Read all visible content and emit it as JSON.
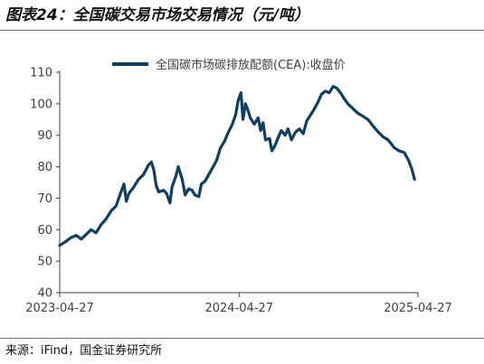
{
  "header": {
    "title": "图表24：全国碳交易市场交易情况（元/吨）"
  },
  "footer": {
    "source": "来源：iFind，国金证券研究所"
  },
  "chart_data": {
    "type": "line",
    "title": "图表24：全国碳交易市场交易情况（元/吨）",
    "xlabel": "",
    "ylabel": "",
    "ylim": [
      40,
      110
    ],
    "yticks": [
      40,
      50,
      60,
      70,
      80,
      90,
      100,
      110
    ],
    "xticks": [
      "2023-04-27",
      "2024-04-27",
      "2025-04-27"
    ],
    "legend_position": "top",
    "grid": false,
    "series": [
      {
        "name": "全国碳市场碳排放配额(CEA):收盘价",
        "color": "#0d3f63",
        "points": [
          [
            "2023-04-27",
            55.0
          ],
          [
            "2023-05-10",
            56.3
          ],
          [
            "2023-05-20",
            57.5
          ],
          [
            "2023-05-31",
            58.2
          ],
          [
            "2023-06-10",
            57.0
          ],
          [
            "2023-06-20",
            58.5
          ],
          [
            "2023-06-30",
            60.0
          ],
          [
            "2023-07-10",
            59.0
          ],
          [
            "2023-07-20",
            61.5
          ],
          [
            "2023-07-31",
            63.5
          ],
          [
            "2023-08-10",
            66.0
          ],
          [
            "2023-08-20",
            67.5
          ],
          [
            "2023-08-28",
            71.0
          ],
          [
            "2023-09-05",
            74.5
          ],
          [
            "2023-09-10",
            69.0
          ],
          [
            "2023-09-15",
            71.5
          ],
          [
            "2023-09-25",
            73.5
          ],
          [
            "2023-10-05",
            76.0
          ],
          [
            "2023-10-15",
            77.5
          ],
          [
            "2023-10-25",
            80.5
          ],
          [
            "2023-10-31",
            81.5
          ],
          [
            "2023-11-05",
            79.0
          ],
          [
            "2023-11-10",
            74.0
          ],
          [
            "2023-11-15",
            72.0
          ],
          [
            "2023-11-25",
            72.5
          ],
          [
            "2023-12-01",
            71.5
          ],
          [
            "2023-12-08",
            68.5
          ],
          [
            "2023-12-12",
            73.5
          ],
          [
            "2023-12-20",
            77.0
          ],
          [
            "2023-12-25",
            80.0
          ],
          [
            "2024-01-02",
            76.0
          ],
          [
            "2024-01-08",
            71.0
          ],
          [
            "2024-01-15",
            73.0
          ],
          [
            "2024-01-22",
            72.5
          ],
          [
            "2024-01-28",
            71.0
          ],
          [
            "2024-02-05",
            70.5
          ],
          [
            "2024-02-10",
            74.5
          ],
          [
            "2024-02-18",
            75.5
          ],
          [
            "2024-02-25",
            77.5
          ],
          [
            "2024-03-05",
            80.0
          ],
          [
            "2024-03-12",
            82.0
          ],
          [
            "2024-03-20",
            86.0
          ],
          [
            "2024-03-28",
            88.0
          ],
          [
            "2024-04-05",
            91.0
          ],
          [
            "2024-04-12",
            93.0
          ],
          [
            "2024-04-20",
            96.5
          ],
          [
            "2024-04-25",
            101.0
          ],
          [
            "2024-05-01",
            103.5
          ],
          [
            "2024-05-05",
            95.0
          ],
          [
            "2024-05-10",
            100.0
          ],
          [
            "2024-05-15",
            98.0
          ],
          [
            "2024-05-20",
            95.5
          ],
          [
            "2024-05-28",
            93.5
          ],
          [
            "2024-06-05",
            95.5
          ],
          [
            "2024-06-10",
            91.5
          ],
          [
            "2024-06-15",
            94.0
          ],
          [
            "2024-06-20",
            88.5
          ],
          [
            "2024-06-28",
            89.0
          ],
          [
            "2024-07-03",
            85.0
          ],
          [
            "2024-07-10",
            87.0
          ],
          [
            "2024-07-15",
            89.0
          ],
          [
            "2024-07-22",
            91.5
          ],
          [
            "2024-07-30",
            90.0
          ],
          [
            "2024-08-05",
            92.0
          ],
          [
            "2024-08-12",
            88.5
          ],
          [
            "2024-08-20",
            91.0
          ],
          [
            "2024-08-28",
            92.0
          ],
          [
            "2024-09-05",
            90.5
          ],
          [
            "2024-09-12",
            94.5
          ],
          [
            "2024-09-20",
            96.5
          ],
          [
            "2024-09-28",
            98.5
          ],
          [
            "2024-10-05",
            100.5
          ],
          [
            "2024-10-12",
            103.0
          ],
          [
            "2024-10-20",
            104.0
          ],
          [
            "2024-10-28",
            103.5
          ],
          [
            "2024-11-05",
            105.5
          ],
          [
            "2024-11-12",
            105.0
          ],
          [
            "2024-11-20",
            103.5
          ],
          [
            "2024-11-28",
            101.5
          ],
          [
            "2024-12-05",
            100.0
          ],
          [
            "2024-12-15",
            98.5
          ],
          [
            "2024-12-25",
            97.0
          ],
          [
            "2025-01-05",
            96.0
          ],
          [
            "2025-01-15",
            95.0
          ],
          [
            "2025-01-25",
            93.0
          ],
          [
            "2025-02-05",
            91.0
          ],
          [
            "2025-02-15",
            89.5
          ],
          [
            "2025-02-25",
            88.5
          ],
          [
            "2025-03-10",
            86.0
          ],
          [
            "2025-03-20",
            85.0
          ],
          [
            "2025-03-30",
            84.5
          ],
          [
            "2025-04-08",
            82.0
          ],
          [
            "2025-04-15",
            79.0
          ],
          [
            "2025-04-20",
            76.0
          ]
        ]
      }
    ]
  }
}
